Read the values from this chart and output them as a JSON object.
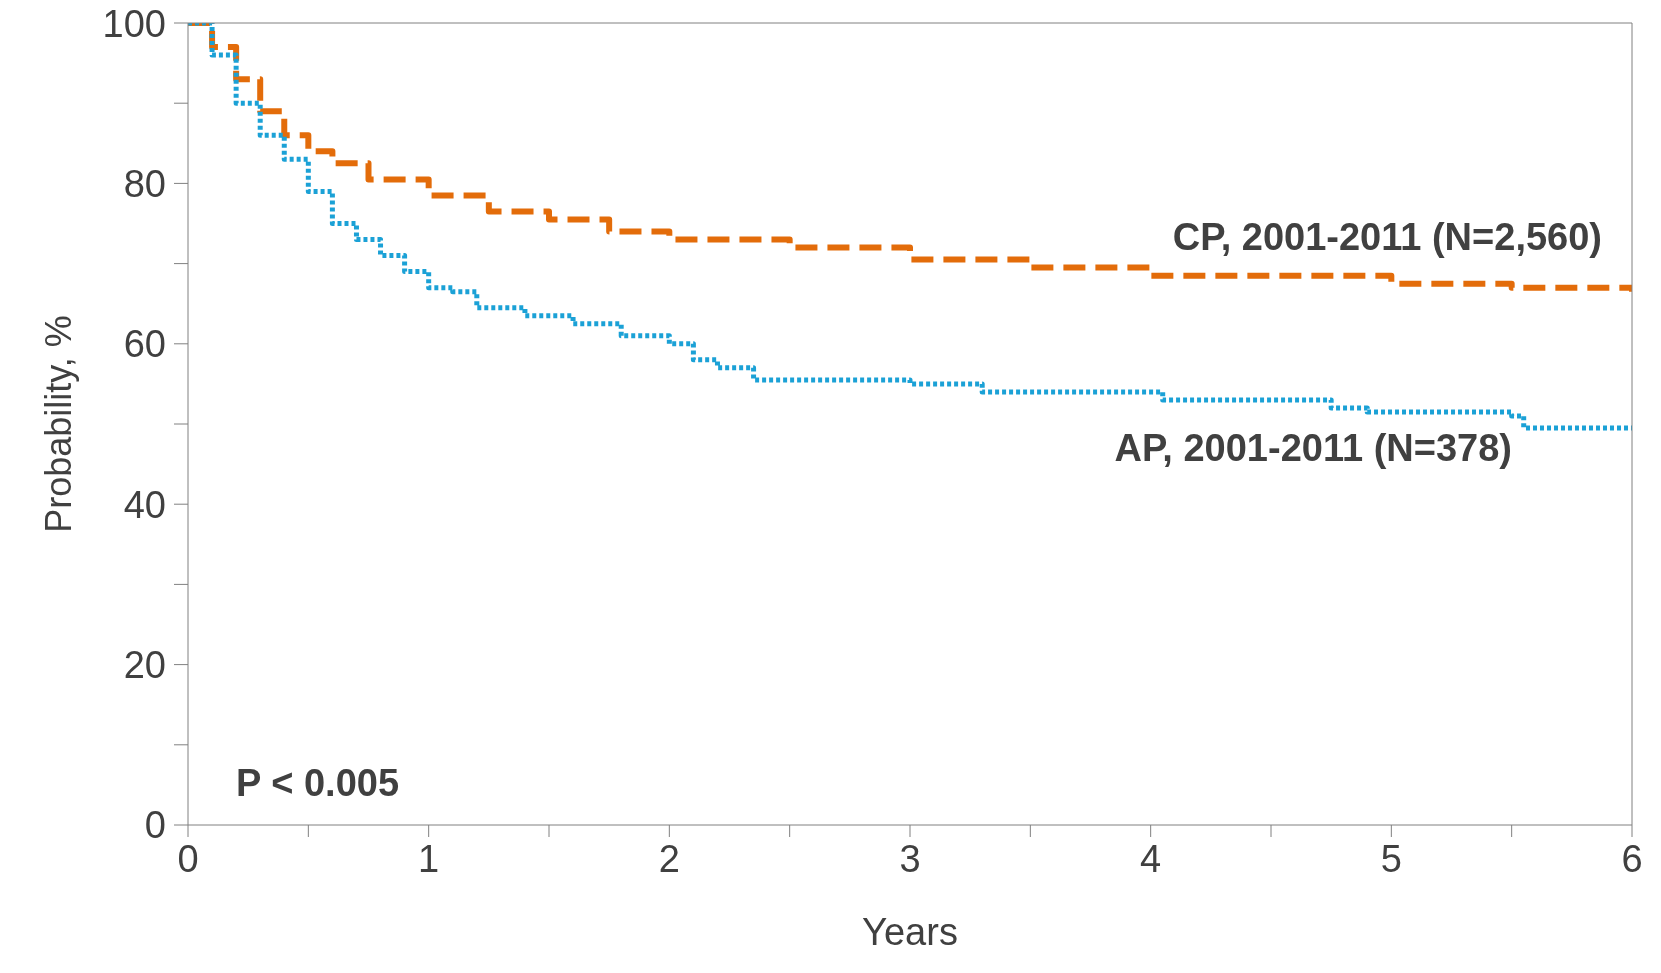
{
  "chart_data": {
    "type": "step",
    "xlabel": "Years",
    "ylabel": "Probability, %",
    "xlim": [
      0,
      6
    ],
    "ylim": [
      0,
      100
    ],
    "xticks": [
      0,
      {
        "value": 0.5,
        "label": null
      },
      1,
      {
        "value": 1.5,
        "label": null
      },
      2,
      {
        "value": 2.5,
        "label": null
      },
      3,
      {
        "value": 3.5,
        "label": null
      },
      4,
      {
        "value": 4.5,
        "label": null
      },
      5,
      {
        "value": 5.5,
        "label": null
      },
      6
    ],
    "yticks": [
      0,
      {
        "value": 10,
        "label": null
      },
      20,
      {
        "value": 30,
        "label": null
      },
      40,
      {
        "value": 50,
        "label": null
      },
      60,
      {
        "value": 70,
        "label": null
      },
      80,
      {
        "value": 90,
        "label": null
      },
      100
    ],
    "series": [
      {
        "name": "CP, 2001-2011 (N=2,560)",
        "color": "#e36c0a",
        "line_style": "dashed",
        "x": [
          0,
          0.1,
          0.2,
          0.3,
          0.4,
          0.5,
          0.6,
          0.75,
          1,
          1.25,
          1.5,
          1.75,
          2,
          2.5,
          3,
          3.5,
          4,
          4.5,
          5,
          5.5,
          6
        ],
        "values": [
          100,
          97,
          93,
          89,
          86,
          84,
          82.5,
          80.5,
          78.5,
          76.5,
          75.5,
          74,
          73,
          72,
          70.5,
          69.5,
          68.5,
          68.5,
          67.5,
          67,
          66.5
        ]
      },
      {
        "name": "AP, 2001-2011 (N=378)",
        "color": "#1ba1d6",
        "line_style": "dotted",
        "x": [
          0,
          0.1,
          0.2,
          0.3,
          0.4,
          0.5,
          0.6,
          0.7,
          0.8,
          0.9,
          1,
          1.1,
          1.2,
          1.4,
          1.6,
          1.8,
          2,
          2.1,
          2.2,
          2.35,
          3,
          3.3,
          4,
          4.05,
          4.6,
          4.75,
          4.9,
          5.5,
          5.55,
          6
        ],
        "values": [
          100,
          96,
          90,
          86,
          83,
          79,
          75,
          73,
          71,
          69,
          67,
          66.5,
          64.5,
          63.5,
          62.5,
          61,
          60,
          58,
          57,
          55.5,
          55,
          54,
          54,
          53,
          53,
          52,
          51.5,
          51,
          49.5,
          49.5
        ]
      }
    ],
    "annotations": [
      "P < 0.005"
    ]
  }
}
